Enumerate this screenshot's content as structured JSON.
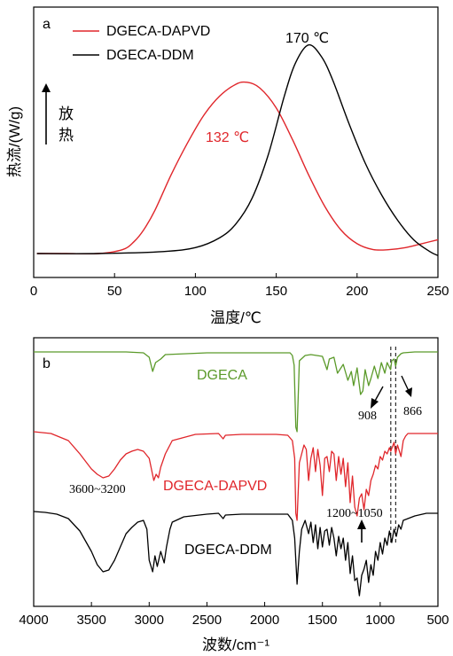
{
  "chart_data": [
    {
      "panel": "a",
      "type": "line",
      "xlabel": "温度/℃",
      "ylabel": "热流/(W/g)",
      "xlim": [
        0,
        250
      ],
      "xticks": [
        "0",
        "50",
        "100",
        "150",
        "200",
        "250"
      ],
      "exo_label": [
        "放",
        "热"
      ],
      "series": [
        {
          "name": "DGECA-DAPVD",
          "color": "#e0262b",
          "peak_label": "132 ℃",
          "x": [
            2,
            20,
            40,
            55,
            62,
            68,
            75,
            85,
            95,
            105,
            115,
            125,
            132,
            140,
            150,
            160,
            170,
            180,
            190,
            200,
            210,
            220,
            230,
            240,
            250
          ],
          "y": [
            0.0,
            0.0,
            0.0,
            0.02,
            0.06,
            0.12,
            0.22,
            0.4,
            0.56,
            0.7,
            0.8,
            0.86,
            0.87,
            0.84,
            0.74,
            0.58,
            0.4,
            0.24,
            0.12,
            0.05,
            0.02,
            0.02,
            0.03,
            0.05,
            0.07
          ]
        },
        {
          "name": "DGECA-DDM",
          "color": "#000000",
          "peak_label": "170 ℃",
          "x": [
            2,
            40,
            80,
            100,
            115,
            125,
            135,
            145,
            155,
            162,
            170,
            178,
            185,
            195,
            205,
            215,
            225,
            235,
            245,
            250
          ],
          "y": [
            0.0,
            0.0,
            0.01,
            0.03,
            0.08,
            0.15,
            0.28,
            0.5,
            0.8,
            0.97,
            1.06,
            1.0,
            0.88,
            0.66,
            0.46,
            0.3,
            0.17,
            0.07,
            0.01,
            -0.01
          ]
        }
      ]
    },
    {
      "panel": "b",
      "type": "line",
      "xlabel": "波数/cm⁻¹",
      "xlim": [
        4000,
        500
      ],
      "xticks": [
        "4000",
        "3500",
        "3000",
        "2500",
        "2000",
        "1500",
        "1000",
        "500"
      ],
      "reference_lines": [
        908,
        866
      ],
      "annotations": [
        "3600~3200",
        "1200~1050",
        "908",
        "866"
      ],
      "series": [
        {
          "name": "DGECA",
          "color": "#5b9a2a",
          "x": [
            4000,
            3200,
            3050,
            3000,
            2970,
            2945,
            2900,
            2860,
            2500,
            2000,
            1780,
            1760,
            1745,
            1730,
            1720,
            1700,
            1650,
            1600,
            1500,
            1460,
            1440,
            1400,
            1370,
            1320,
            1280,
            1250,
            1230,
            1200,
            1170,
            1150,
            1130,
            1100,
            1080,
            1050,
            1020,
            990,
            960,
            940,
            910,
            900,
            880,
            866,
            850,
            820,
            800,
            700,
            500
          ],
          "y": [
            0.0,
            0.0,
            0.01,
            0.06,
            0.22,
            0.12,
            0.08,
            0.03,
            0.01,
            0.01,
            0.01,
            0.04,
            0.15,
            0.85,
            0.9,
            0.1,
            0.04,
            0.03,
            0.05,
            0.2,
            0.08,
            0.06,
            0.24,
            0.14,
            0.32,
            0.22,
            0.38,
            0.18,
            0.48,
            0.44,
            0.2,
            0.38,
            0.3,
            0.16,
            0.3,
            0.12,
            0.24,
            0.12,
            0.2,
            0.1,
            0.08,
            0.16,
            0.06,
            0.02,
            0.01,
            0.0,
            0.0
          ]
        },
        {
          "name": "DGECA-DAPVD",
          "color": "#e0262b",
          "x": [
            4000,
            3850,
            3700,
            3600,
            3500,
            3450,
            3400,
            3350,
            3300,
            3250,
            3200,
            3150,
            3100,
            3050,
            3000,
            2960,
            2940,
            2920,
            2900,
            2860,
            2800,
            2600,
            2400,
            2360,
            2340,
            2200,
            2000,
            1900,
            1800,
            1760,
            1740,
            1730,
            1720,
            1700,
            1660,
            1640,
            1620,
            1600,
            1580,
            1560,
            1540,
            1520,
            1500,
            1480,
            1460,
            1440,
            1420,
            1400,
            1380,
            1360,
            1340,
            1320,
            1300,
            1280,
            1260,
            1240,
            1220,
            1200,
            1180,
            1160,
            1140,
            1120,
            1100,
            1080,
            1060,
            1040,
            1020,
            1000,
            980,
            960,
            940,
            920,
            908,
            880,
            866,
            850,
            820,
            800,
            780,
            760,
            700,
            600,
            500
          ],
          "y": [
            0.0,
            0.02,
            0.1,
            0.25,
            0.42,
            0.48,
            0.52,
            0.5,
            0.42,
            0.32,
            0.25,
            0.22,
            0.2,
            0.22,
            0.3,
            0.55,
            0.48,
            0.52,
            0.4,
            0.25,
            0.1,
            0.03,
            0.02,
            0.08,
            0.04,
            0.03,
            0.03,
            0.03,
            0.04,
            0.1,
            0.3,
            0.92,
            1.0,
            0.35,
            0.15,
            0.2,
            0.55,
            0.3,
            0.18,
            0.45,
            0.2,
            0.38,
            0.72,
            0.3,
            0.28,
            0.45,
            0.22,
            0.25,
            0.55,
            0.28,
            0.48,
            0.3,
            0.62,
            0.35,
            0.8,
            0.5,
            0.85,
            0.95,
            0.75,
            0.7,
            0.88,
            0.65,
            0.72,
            0.55,
            0.48,
            0.38,
            0.42,
            0.28,
            0.32,
            0.22,
            0.25,
            0.18,
            0.22,
            0.12,
            0.25,
            0.15,
            0.28,
            0.1,
            0.05,
            0.02,
            0.02,
            0.02,
            0.02
          ]
        },
        {
          "name": "DGECA-DDM",
          "color": "#000000",
          "x": [
            4000,
            3900,
            3800,
            3700,
            3600,
            3500,
            3450,
            3400,
            3350,
            3300,
            3250,
            3200,
            3150,
            3100,
            3050,
            3020,
            3000,
            2970,
            2950,
            2930,
            2900,
            2870,
            2850,
            2820,
            2800,
            2700,
            2500,
            2400,
            2360,
            2340,
            2200,
            2000,
            1900,
            1800,
            1760,
            1740,
            1720,
            1700,
            1680,
            1650,
            1620,
            1600,
            1580,
            1560,
            1540,
            1520,
            1500,
            1480,
            1460,
            1440,
            1420,
            1400,
            1380,
            1360,
            1340,
            1320,
            1300,
            1280,
            1260,
            1240,
            1220,
            1200,
            1180,
            1160,
            1140,
            1120,
            1100,
            1080,
            1060,
            1040,
            1020,
            1000,
            980,
            960,
            940,
            920,
            900,
            880,
            860,
            840,
            820,
            800,
            700,
            600,
            500
          ],
          "y": [
            0.0,
            0.01,
            0.03,
            0.08,
            0.22,
            0.45,
            0.6,
            0.68,
            0.66,
            0.55,
            0.4,
            0.25,
            0.18,
            0.12,
            0.1,
            0.2,
            0.55,
            0.68,
            0.5,
            0.62,
            0.45,
            0.58,
            0.4,
            0.2,
            0.12,
            0.06,
            0.03,
            0.02,
            0.08,
            0.04,
            0.03,
            0.03,
            0.03,
            0.03,
            0.1,
            0.3,
            0.82,
            0.45,
            0.2,
            0.1,
            0.25,
            0.12,
            0.35,
            0.15,
            0.42,
            0.18,
            0.4,
            0.22,
            0.2,
            0.38,
            0.18,
            0.3,
            0.5,
            0.28,
            0.42,
            0.3,
            0.55,
            0.35,
            0.7,
            0.5,
            0.78,
            0.75,
            0.95,
            0.72,
            0.65,
            0.55,
            0.8,
            0.6,
            0.72,
            0.45,
            0.55,
            0.35,
            0.48,
            0.3,
            0.38,
            0.22,
            0.35,
            0.2,
            0.28,
            0.15,
            0.2,
            0.1,
            0.05,
            0.02,
            0.02
          ]
        }
      ]
    }
  ]
}
